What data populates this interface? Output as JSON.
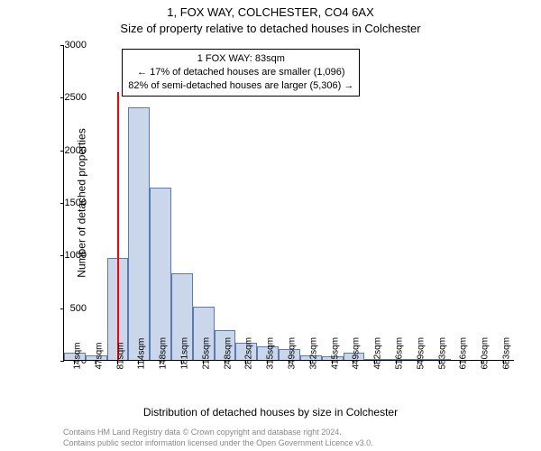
{
  "header": {
    "suptitle": "1, FOX WAY, COLCHESTER, CO4 6AX",
    "title": "Size of property relative to detached houses in Colchester"
  },
  "chart": {
    "type": "histogram",
    "bar_fill": "#cad7eb",
    "bar_stroke": "#5b7bb0",
    "bar_stroke_width": 1,
    "background_color": "#ffffff",
    "axis_color": "#000000",
    "marker_color": "#ff0000",
    "marker_x_value": 83,
    "marker_height_value": 2550,
    "x_start": 0,
    "x_end": 700,
    "bin_width_value": 33.333,
    "values": [
      70,
      40,
      970,
      2400,
      1640,
      820,
      510,
      280,
      160,
      130,
      100,
      40,
      35,
      70,
      10,
      5,
      5,
      5,
      0,
      0,
      0
    ],
    "x_tick_labels": [
      "14sqm",
      "47sqm",
      "81sqm",
      "114sqm",
      "148sqm",
      "181sqm",
      "215sqm",
      "248sqm",
      "282sqm",
      "315sqm",
      "349sqm",
      "382sqm",
      "415sqm",
      "449sqm",
      "482sqm",
      "516sqm",
      "549sqm",
      "583sqm",
      "616sqm",
      "650sqm",
      "683sqm"
    ],
    "y_ticks": [
      0,
      500,
      1000,
      1500,
      2000,
      2500,
      3000
    ],
    "ylim": [
      0,
      3000
    ],
    "label_fontsize": 12,
    "tick_fontsize": 10,
    "ylabel": "Number of detached properties",
    "xlabel": "Distribution of detached houses by size in Colchester"
  },
  "annotation": {
    "line1": "1 FOX WAY: 83sqm",
    "line2": "← 17% of detached houses are smaller (1,096)",
    "line3": "82% of semi-detached houses are larger (5,306) →"
  },
  "footer": {
    "line1": "Contains HM Land Registry data © Crown copyright and database right 2024.",
    "line2": "Contains public sector information licensed under the Open Government Licence v3.0."
  }
}
